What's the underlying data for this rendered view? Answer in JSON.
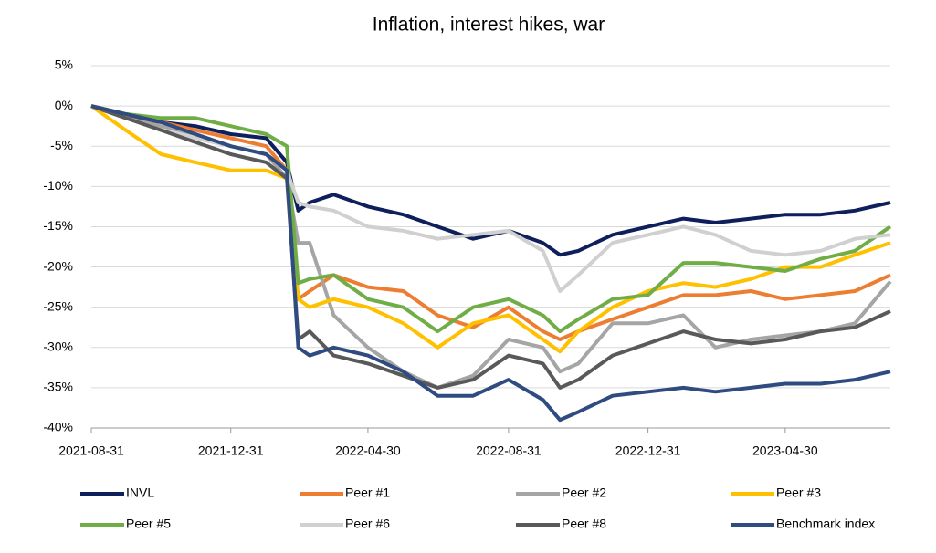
{
  "chart_data": {
    "type": "line",
    "title": "Inflation, interest hikes, war",
    "x": [
      "2021-08-31",
      "2021-09-30",
      "2021-10-31",
      "2021-11-30",
      "2021-12-31",
      "2022-01-31",
      "2022-02-18",
      "2022-02-28",
      "2022-03-10",
      "2022-03-31",
      "2022-04-30",
      "2022-05-31",
      "2022-06-30",
      "2022-07-31",
      "2022-08-31",
      "2022-09-30",
      "2022-10-15",
      "2022-10-31",
      "2022-11-30",
      "2022-12-31",
      "2023-01-31",
      "2023-02-28",
      "2023-03-31",
      "2023-04-30",
      "2023-05-31",
      "2023-06-30",
      "2023-07-31"
    ],
    "series": [
      {
        "name": "INVL",
        "color": "#0e1f5b",
        "values": [
          0,
          -1.5,
          -2,
          -2.5,
          -3.5,
          -4,
          -7,
          -13,
          -12,
          -11,
          -12.5,
          -13.5,
          -15,
          -16.5,
          -15.5,
          -17,
          -18.5,
          -18,
          -16,
          -15,
          -14,
          -14.5,
          -14,
          -13.5,
          -13.5,
          -13,
          -12
        ]
      },
      {
        "name": "Peer #1",
        "color": "#ed7d31",
        "values": [
          0,
          -1,
          -2,
          -3,
          -4,
          -5,
          -8,
          -24,
          -23,
          -21,
          -22.5,
          -23,
          -26,
          -27.5,
          -25,
          -28,
          -29,
          -28,
          -26.5,
          -25,
          -23.5,
          -23.5,
          -23,
          -24,
          -23.5,
          -23,
          -21
        ]
      },
      {
        "name": "Peer #2",
        "color": "#a5a5a5",
        "values": [
          0,
          -1.5,
          -2.5,
          -3.5,
          -5,
          -6,
          -9,
          -17,
          -17,
          -26,
          -30,
          -33,
          -35,
          -33.5,
          -29,
          -30,
          -33,
          -32,
          -27,
          -27,
          -26,
          -30,
          -29,
          -28.5,
          -28,
          -27,
          -21.8
        ]
      },
      {
        "name": "Peer #3",
        "color": "#ffc000",
        "values": [
          0,
          -3,
          -6,
          -7,
          -8,
          -8,
          -9,
          -24,
          -25,
          -24,
          -25,
          -27,
          -30,
          -27,
          -26,
          -29,
          -30.5,
          -28,
          -25,
          -23,
          -22,
          -22.5,
          -21.5,
          -20,
          -20,
          -18.5,
          -17
        ]
      },
      {
        "name": "Peer #5",
        "color": "#70ad47",
        "values": [
          0,
          -1,
          -1.5,
          -1.5,
          -2.5,
          -3.5,
          -5,
          -22,
          -21.5,
          -21,
          -24,
          -25,
          -28,
          -25,
          -24,
          -26,
          -28,
          -26.5,
          -24,
          -23.5,
          -19.5,
          -19.5,
          -20,
          -20.5,
          -19,
          -18,
          -15
        ]
      },
      {
        "name": "Peer #6",
        "color": "#d0d0d0",
        "values": [
          0,
          -1.5,
          -3,
          -4,
          -5,
          -6,
          -8,
          -12,
          -12.5,
          -13,
          -15,
          -15.5,
          -16.5,
          -16,
          -15.5,
          -18,
          -23,
          -21,
          -17,
          -16,
          -15,
          -16,
          -18,
          -18.5,
          -18,
          -16.5,
          -16
        ]
      },
      {
        "name": "Peer #8",
        "color": "#595959",
        "values": [
          0,
          -1.5,
          -3,
          -4.5,
          -6,
          -7,
          -9,
          -29,
          -28,
          -31,
          -32,
          -33.5,
          -35,
          -34,
          -31,
          -32,
          -35,
          -34,
          -31,
          -29.5,
          -28,
          -29,
          -29.5,
          -29,
          -28,
          -27.5,
          -25.5
        ]
      },
      {
        "name": "Benchmark index",
        "color": "#2f4b7f",
        "values": [
          0,
          -1,
          -2,
          -3.5,
          -5,
          -6,
          -8,
          -30,
          -31,
          -30,
          -31,
          -33,
          -36,
          -36,
          -34,
          -36.5,
          -39,
          -38,
          -36,
          -35.5,
          -35,
          -35.5,
          -35,
          -34.5,
          -34.5,
          -34,
          -33
        ]
      }
    ],
    "xlim": [
      "2021-08-31",
      "2023-07-31"
    ],
    "xticks": [
      "2021-08-31",
      "2021-12-31",
      "2022-04-30",
      "2022-08-31",
      "2022-12-31",
      "2023-04-30"
    ],
    "ylim": [
      -40,
      5
    ],
    "yticks": [
      {
        "value": 5,
        "label": "5%"
      },
      {
        "value": 0,
        "label": "0%"
      },
      {
        "value": -5,
        "label": "-5%"
      },
      {
        "value": -10,
        "label": "-10%"
      },
      {
        "value": -15,
        "label": "-15%"
      },
      {
        "value": -20,
        "label": "-20%"
      },
      {
        "value": -25,
        "label": "-25%"
      },
      {
        "value": -30,
        "label": "-30%"
      },
      {
        "value": -35,
        "label": "-35%"
      },
      {
        "value": -40,
        "label": "-40%"
      }
    ],
    "grid": true,
    "legend": "bottom"
  }
}
